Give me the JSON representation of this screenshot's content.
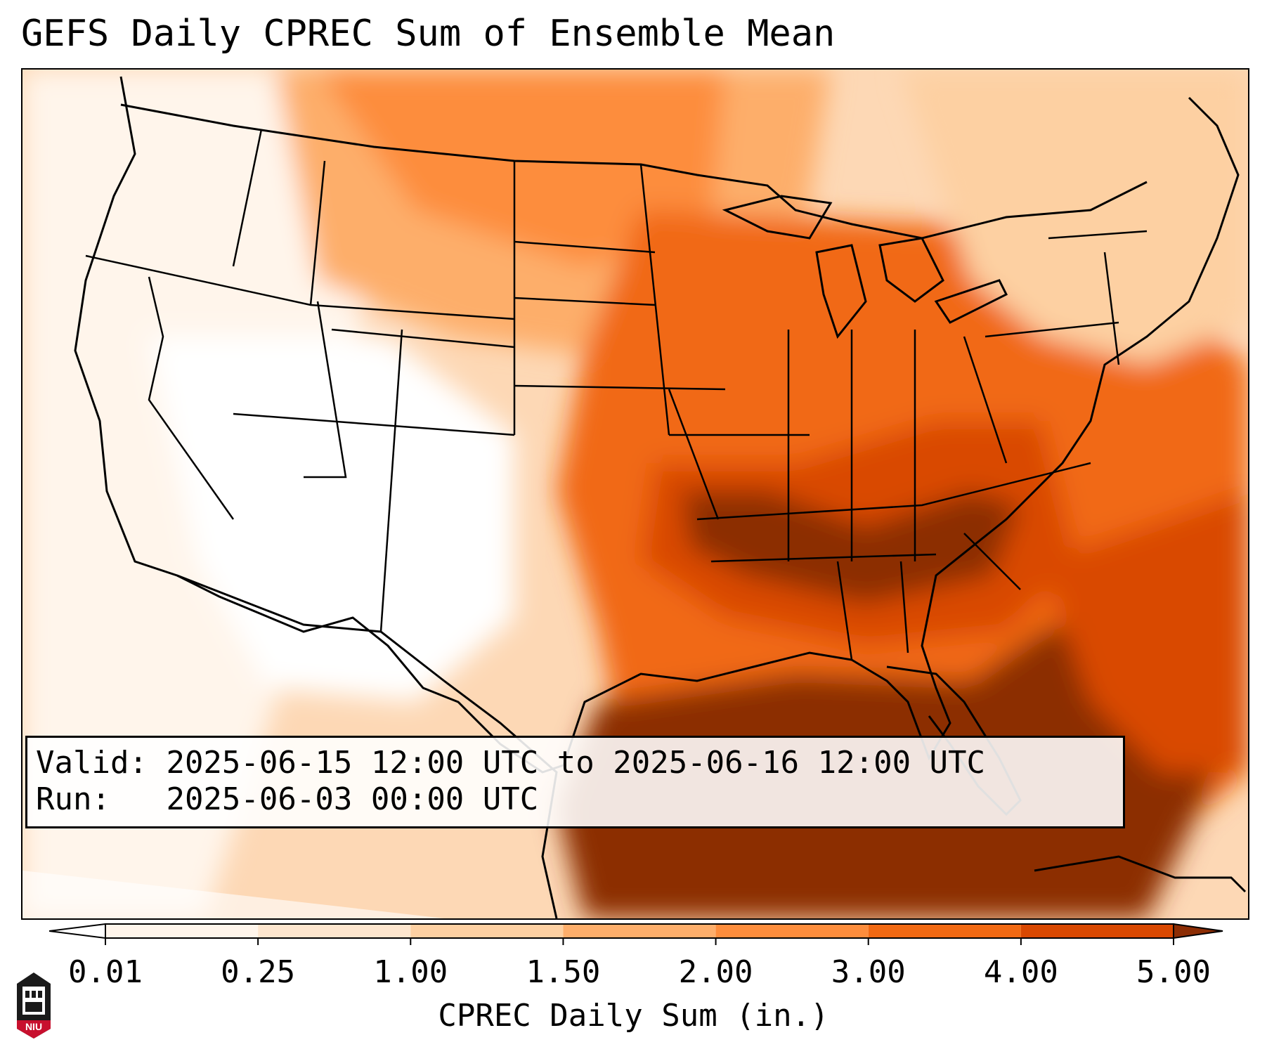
{
  "title": "GEFS Daily CPREC Sum of Ensemble Mean",
  "info": {
    "valid_label": "Valid:",
    "valid_value": "2025-06-15 12:00 UTC to 2025-06-16 12:00 UTC",
    "run_label": "Run:",
    "run_value": "2025-06-03 00:00 UTC"
  },
  "colorbar": {
    "label": "CPREC Daily Sum (in.)",
    "ticks": [
      "0.01",
      "0.25",
      "1.00",
      "1.50",
      "2.00",
      "3.00",
      "4.00",
      "5.00"
    ],
    "colors": [
      "#fff5eb",
      "#fee6ce",
      "#fdd0a2",
      "#fdae6b",
      "#fd8d3c",
      "#f16913",
      "#d94801",
      "#8c2d04"
    ],
    "under_color": "#ffffff",
    "over_color": "#8c2d04"
  },
  "logo": {
    "text": "NIU"
  }
}
